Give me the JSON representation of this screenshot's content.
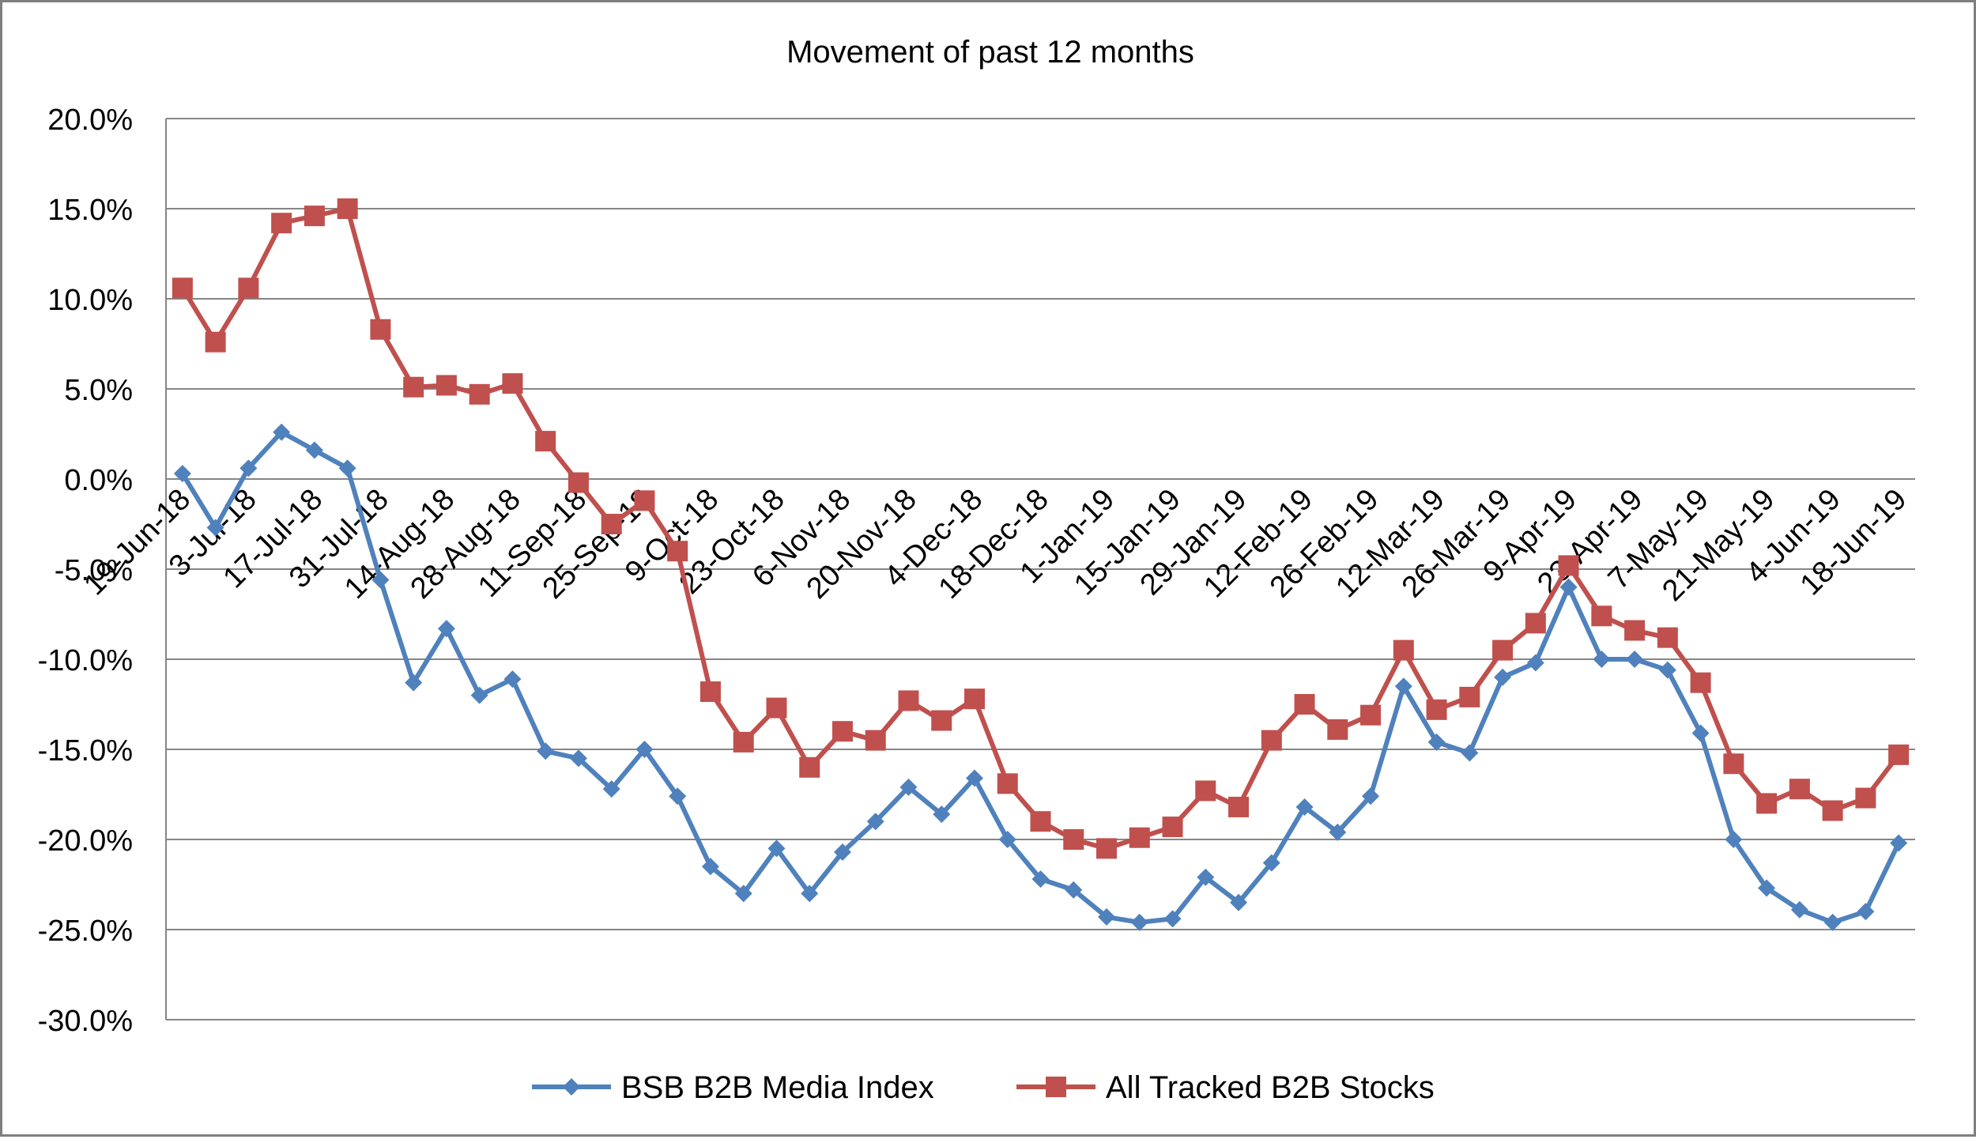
{
  "chart_data": {
    "type": "line",
    "title": "Movement of past 12 months",
    "xlabel": "",
    "ylabel": "",
    "ylim": [
      -30,
      20
    ],
    "ytick_step": 5,
    "y_tick_labels": [
      "20.0%",
      "15.0%",
      "10.0%",
      "5.0%",
      "0.0%",
      "-5.0%",
      "-10.0%",
      "-15.0%",
      "-20.0%",
      "-25.0%",
      "-30.0%"
    ],
    "grid": true,
    "legend_position": "bottom",
    "x_tick_labels": [
      "19-Jun-18",
      "3-Jul-18",
      "17-Jul-18",
      "31-Jul-18",
      "14-Aug-18",
      "28-Aug-18",
      "11-Sep-18",
      "25-Sep-18",
      "9-Oct-18",
      "23-Oct-18",
      "6-Nov-18",
      "20-Nov-18",
      "4-Dec-18",
      "18-Dec-18",
      "1-Jan-19",
      "15-Jan-19",
      "29-Jan-19",
      "12-Feb-19",
      "26-Feb-19",
      "12-Mar-19",
      "26-Mar-19",
      "9-Apr-19",
      "23-Apr-19",
      "7-May-19",
      "21-May-19",
      "4-Jun-19",
      "18-Jun-19"
    ],
    "point_count": 53,
    "series": [
      {
        "name": "BSB B2B Media Index",
        "color": "#4f81bd",
        "marker": "diamond",
        "values": [
          0.3,
          -2.7,
          0.6,
          2.6,
          1.6,
          0.6,
          -5.6,
          -11.3,
          -8.3,
          -12.0,
          -11.1,
          -15.1,
          -15.5,
          -17.2,
          -15.0,
          -17.6,
          -21.5,
          -23.0,
          -20.5,
          -23.0,
          -20.7,
          -19.0,
          -17.1,
          -18.6,
          -16.6,
          -20.0,
          -22.2,
          -22.8,
          -24.3,
          -24.6,
          -24.4,
          -22.1,
          -23.5,
          -21.3,
          -18.2,
          -19.6,
          -17.6,
          -11.5,
          -14.6,
          -15.2,
          -11.0,
          -10.2,
          -6.0,
          -10.0,
          -10.0,
          -10.6,
          -14.1,
          -20.0,
          -22.7,
          -23.9,
          -24.6,
          -24.0,
          -20.2
        ]
      },
      {
        "name": "All Tracked B2B Stocks",
        "color": "#c0504d",
        "marker": "square",
        "values": [
          10.6,
          7.6,
          10.6,
          14.2,
          14.6,
          15.0,
          8.3,
          5.1,
          5.2,
          4.7,
          5.3,
          2.1,
          -0.2,
          -2.5,
          -1.2,
          -4.0,
          -11.8,
          -14.6,
          -12.7,
          -16.0,
          -14.0,
          -14.5,
          -12.3,
          -13.4,
          -12.2,
          -16.9,
          -19.0,
          -20.0,
          -20.5,
          -19.9,
          -19.3,
          -17.3,
          -18.2,
          -14.5,
          -12.5,
          -13.9,
          -13.1,
          -9.5,
          -12.8,
          -12.1,
          -9.5,
          -8.0,
          -4.8,
          -7.6,
          -8.4,
          -8.8,
          -11.3,
          -15.8,
          -18.0,
          -17.2,
          -18.4,
          -17.7,
          -15.3
        ]
      }
    ]
  }
}
